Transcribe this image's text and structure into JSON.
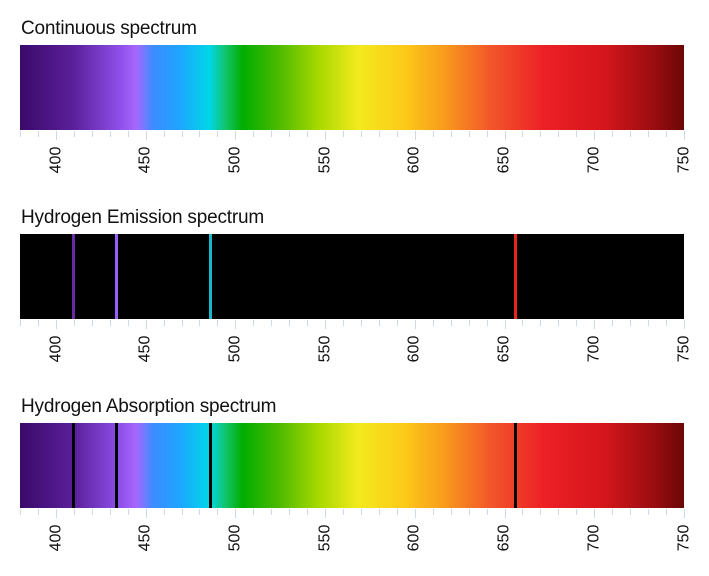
{
  "panels": [
    {
      "title": "Continuous spectrum",
      "kind": "continuous",
      "lines": []
    },
    {
      "title": "Hydrogen Emission spectrum",
      "kind": "emission",
      "lines": [
        {
          "nm": 410,
          "color": "#6a2aa8"
        },
        {
          "nm": 434,
          "color": "#9560ff"
        },
        {
          "nm": 486,
          "color": "#17b8cc"
        },
        {
          "nm": 656,
          "color": "#e8241c"
        }
      ]
    },
    {
      "title": "Hydrogen Absorption spectrum",
      "kind": "absorption",
      "lines": [
        {
          "nm": 410,
          "color": "#000000"
        },
        {
          "nm": 434,
          "color": "#000000"
        },
        {
          "nm": 486,
          "color": "#000000"
        },
        {
          "nm": 656,
          "color": "#000000"
        }
      ]
    }
  ],
  "axis": {
    "min": 380,
    "max": 750,
    "major_ticks": [
      "400",
      "450",
      "500",
      "550",
      "600",
      "650",
      "700",
      "750"
    ],
    "minor_step": 10
  }
}
